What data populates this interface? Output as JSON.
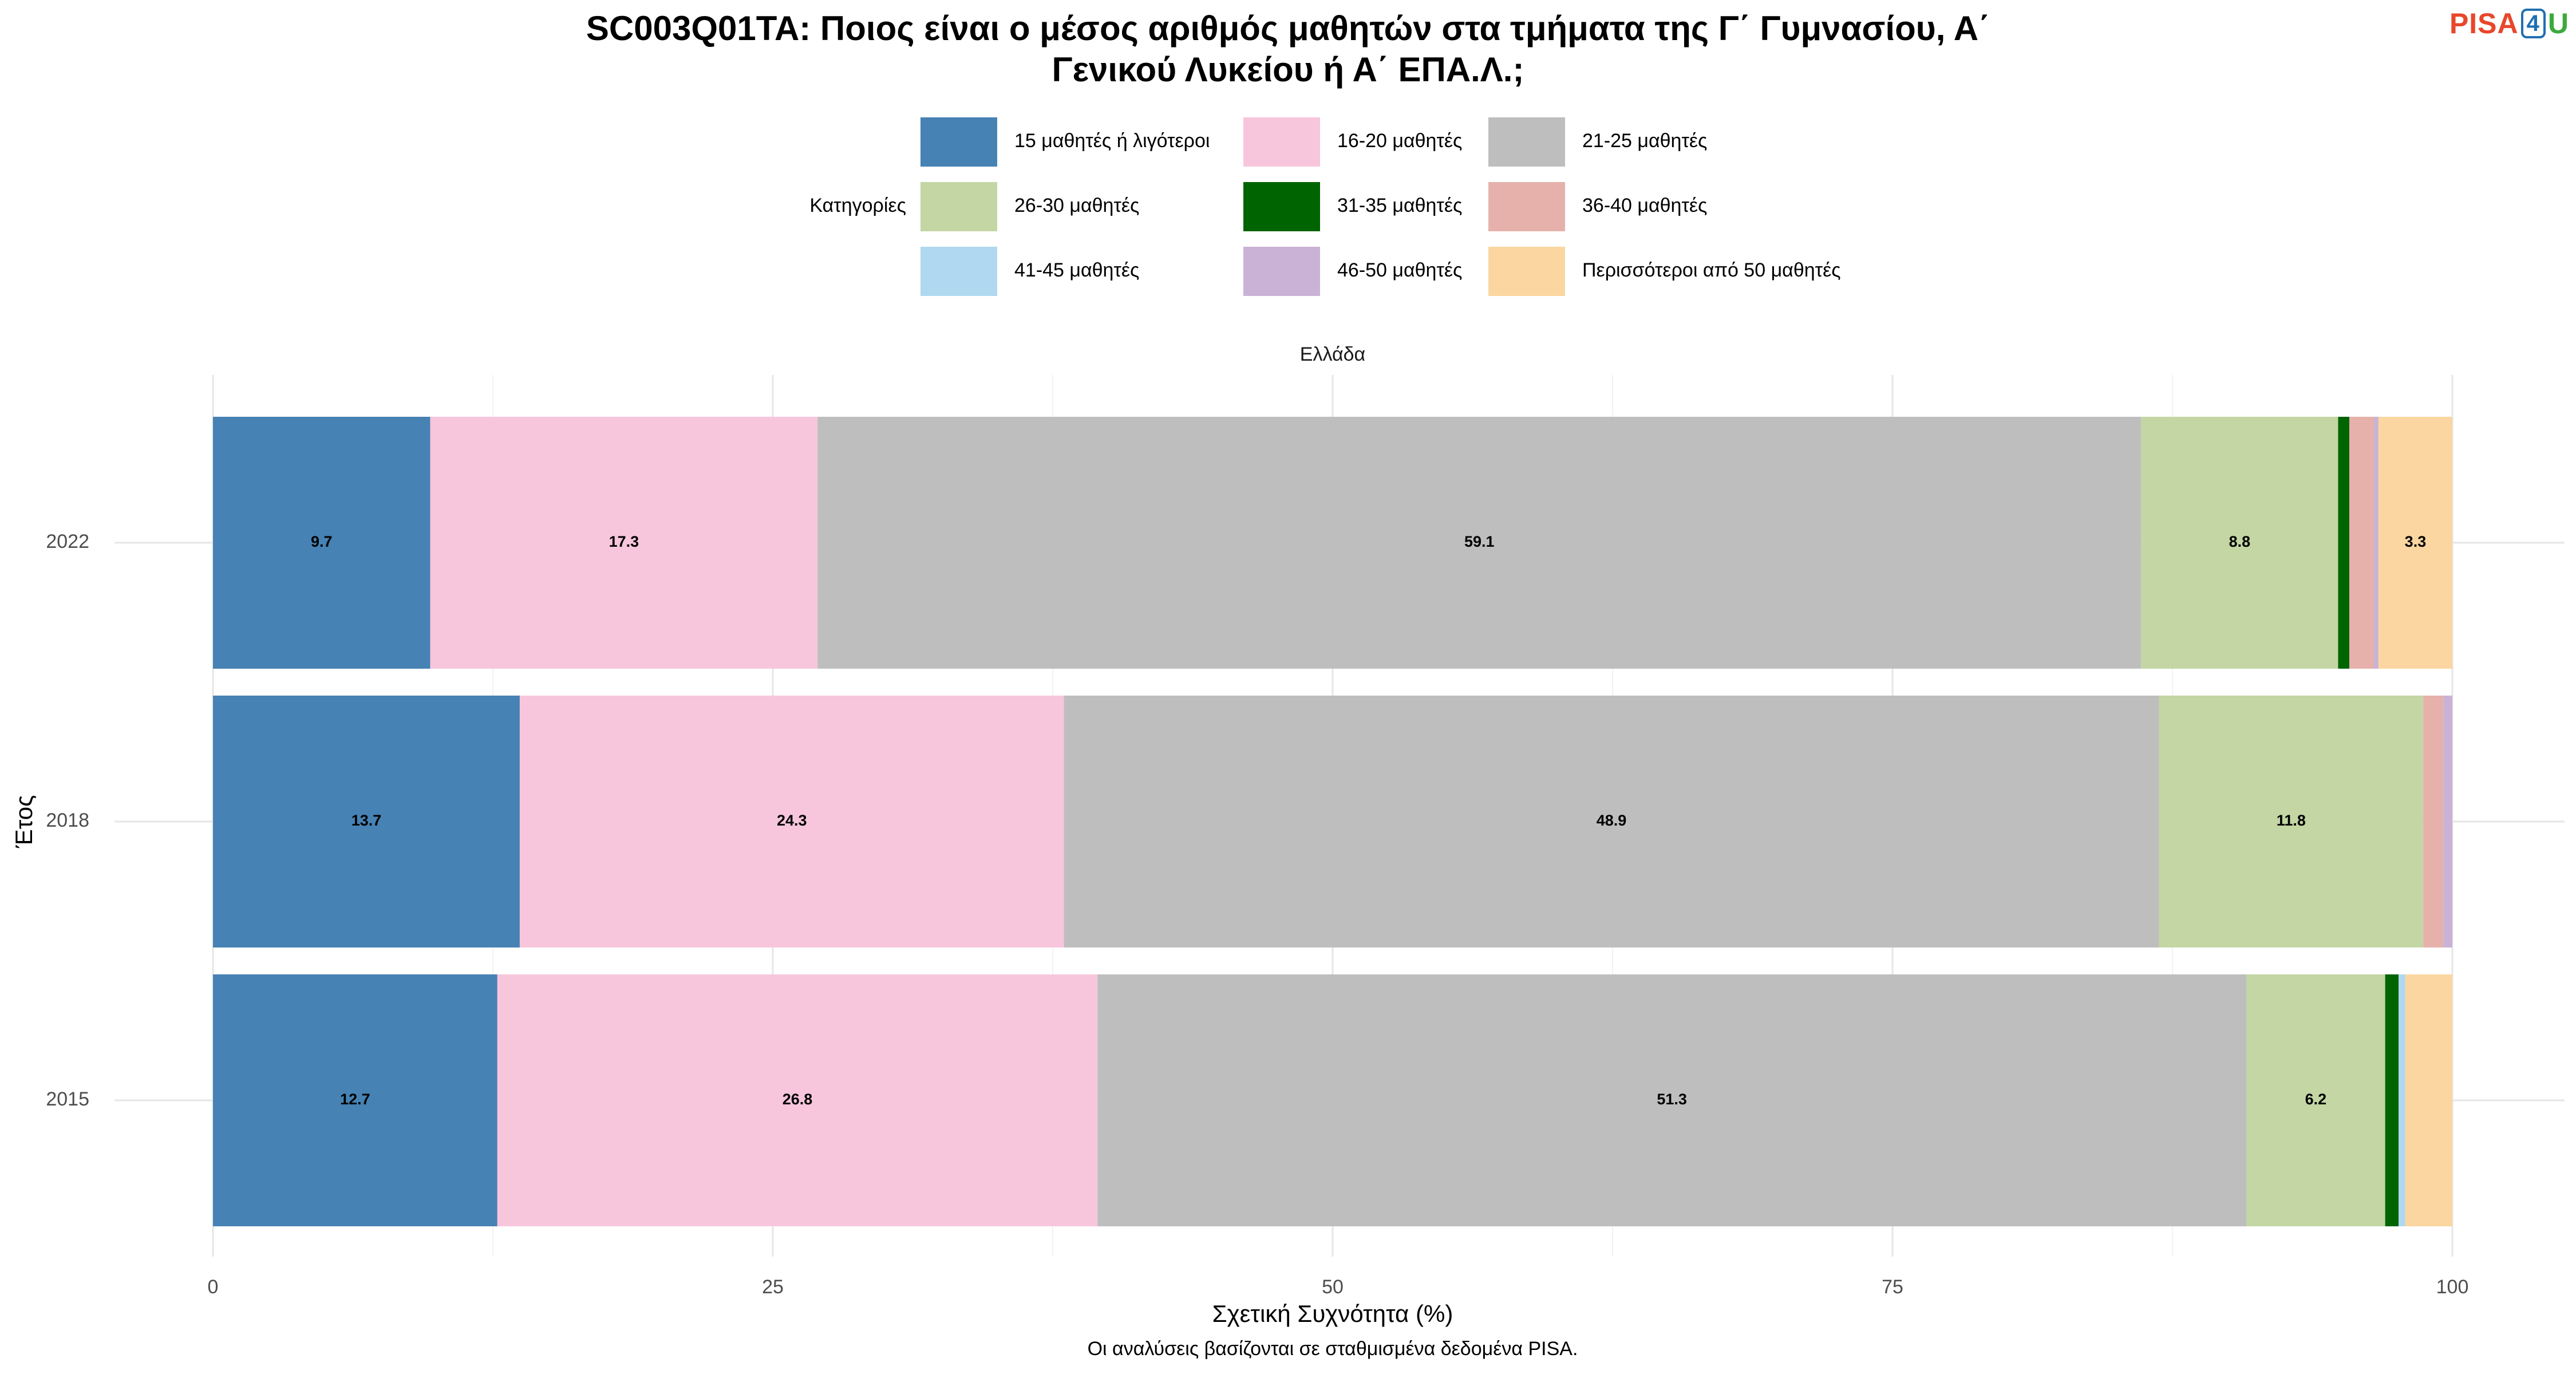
{
  "title": {
    "line1": "SC003Q01TA: Ποιος είναι ο μέσος αριθμός μαθητών στα τμήματα της Γ΄ Γυμνασίου, Α΄",
    "line2": "Γενικού Λυκείου ή Α΄ ΕΠΑ.Λ.;"
  },
  "logo": {
    "p": "PISA",
    "n": "4",
    "u": "U"
  },
  "chart_data": {
    "type": "bar",
    "orientation": "horizontal",
    "stacked": true,
    "facet_title": "Ελλάδα",
    "legend_title": "Κατηγορίες",
    "legend_position": "top",
    "xlabel": "Σχετική Συχνότητα (%)",
    "ylabel": "Έτος",
    "caption": "Οι αναλύσεις βασίζονται σε σταθμισμένα δεδομένα PISA.",
    "xlim": [
      0,
      100
    ],
    "xticks": [
      0,
      25,
      50,
      75,
      100
    ],
    "grid": true,
    "categories": [
      "2022",
      "2018",
      "2015"
    ],
    "series": [
      {
        "name": "15 μαθητές ή λιγότεροι",
        "color": "#4682B4",
        "values": [
          9.7,
          13.7,
          12.7
        ]
      },
      {
        "name": "16-20 μαθητές",
        "color": "#F7C6DC",
        "values": [
          17.3,
          24.3,
          26.8
        ]
      },
      {
        "name": "21-25 μαθητές",
        "color": "#BEBEBE",
        "values": [
          59.1,
          48.9,
          51.3
        ]
      },
      {
        "name": "26-30 μαθητές",
        "color": "#C3D6A4",
        "values": [
          8.8,
          11.8,
          6.2
        ]
      },
      {
        "name": "31-35 μαθητές",
        "color": "#006400",
        "values": [
          0.5,
          0.0,
          0.6
        ]
      },
      {
        "name": "36-40 μαθητές",
        "color": "#E6B1AB",
        "values": [
          1.1,
          0.9,
          0.0
        ]
      },
      {
        "name": "41-45 μαθητές",
        "color": "#B0D8F0",
        "values": [
          0.0,
          0.0,
          0.3
        ]
      },
      {
        "name": "46-50 μαθητές",
        "color": "#C9B2D6",
        "values": [
          0.2,
          0.4,
          0.0
        ]
      },
      {
        "name": "Περισσότεροι από 50 μαθητές",
        "color": "#FBD6A0",
        "values": [
          3.3,
          0.0,
          2.1
        ]
      }
    ],
    "label_min_value": 3
  }
}
